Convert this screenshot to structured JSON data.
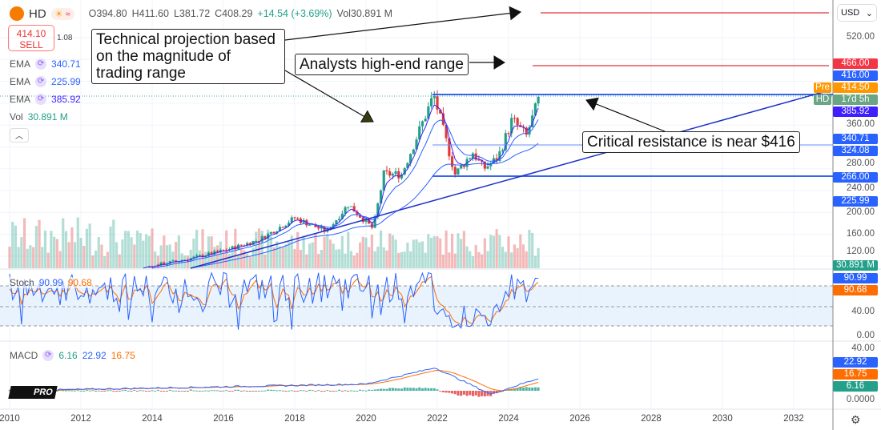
{
  "header": {
    "symbol": "HD",
    "open": "O394.80",
    "high": "H411.60",
    "low": "L381.72",
    "close": "C408.29",
    "change": "+14.54 (+3.69%)",
    "volume": "Vol30.891 M",
    "sun_icon": "☀",
    "wave_icon": "≈"
  },
  "sell": {
    "price": "414.10",
    "label": "SELL",
    "spread": "1.08"
  },
  "indicators": [
    {
      "name": "EMA",
      "value": "340.71",
      "color": "#2962ff"
    },
    {
      "name": "EMA",
      "value": "225.99",
      "color": "#2962ff"
    },
    {
      "name": "EMA",
      "value": "385.92",
      "color": "#3f1fff"
    }
  ],
  "vol": {
    "name": "Vol",
    "value": "30.891 M"
  },
  "stoch": {
    "name": "Stoch",
    "k": "90.99",
    "d": "90.68"
  },
  "macd": {
    "name": "MACD",
    "hist": "6.16",
    "macd": "22.92",
    "signal": "16.75"
  },
  "currency": "USD",
  "annotations": [
    "Technical projection based on the magnitude of trading range",
    "Analysts high-end range",
    "Critical resistance is near $416"
  ],
  "price_axis": [
    "520.00",
    "360.00",
    "280.00",
    "240.00",
    "200.00",
    "160.00",
    "120.00"
  ],
  "price_tags": [
    {
      "text": "466.00",
      "color": "#f23645"
    },
    {
      "text": "416.00",
      "color": "#2962ff"
    },
    {
      "text": "414.50",
      "color": "#ff9800",
      "side": "Pre"
    },
    {
      "text": "17d 5h",
      "color": "#6aa585",
      "side": "HD"
    },
    {
      "text": "385.92",
      "color": "#3f1fff"
    },
    {
      "text": "340.71",
      "color": "#2962ff"
    },
    {
      "text": "324.08",
      "color": "#2962ff"
    },
    {
      "text": "266.00",
      "color": "#2962ff"
    },
    {
      "text": "225.99",
      "color": "#2962ff"
    },
    {
      "text": "30.891 M",
      "color": "#22a08a"
    }
  ],
  "stoch_axis": [
    "40.00",
    "0.00"
  ],
  "stoch_tags": [
    {
      "text": "90.99",
      "color": "#2962ff"
    },
    {
      "text": "90.68",
      "color": "#ff6d00"
    }
  ],
  "macd_axis": [
    "40.00",
    "0.0000"
  ],
  "macd_tags": [
    {
      "text": "22.92",
      "color": "#2962ff"
    },
    {
      "text": "16.75",
      "color": "#ff6d00"
    },
    {
      "text": "6.16",
      "color": "#22a08a"
    }
  ],
  "years": [
    "2010",
    "2012",
    "2014",
    "2016",
    "2018",
    "2020",
    "2022",
    "2024",
    "2026",
    "2028",
    "2030",
    "2032"
  ],
  "logo": "TV PRO",
  "chart_data": {
    "type": "candlestick",
    "title": "HD",
    "ylim": [
      100,
      540
    ],
    "x": [
      2015.0,
      2016.0,
      2017.0,
      2018.0,
      2018.9,
      2019.5,
      2020.2,
      2020.5,
      2021.0,
      2021.9,
      2022.5,
      2023.0,
      2023.3,
      2023.7,
      2024.1,
      2024.5,
      2024.85
    ],
    "close": [
      115,
      130,
      150,
      190,
      165,
      215,
      170,
      270,
      270,
      415,
      270,
      310,
      280,
      300,
      370,
      340,
      408
    ],
    "levels": {
      "projection": 540,
      "analyst_high": 466,
      "resistance": 416,
      "support_1": 324.08,
      "support_2": 266
    }
  }
}
